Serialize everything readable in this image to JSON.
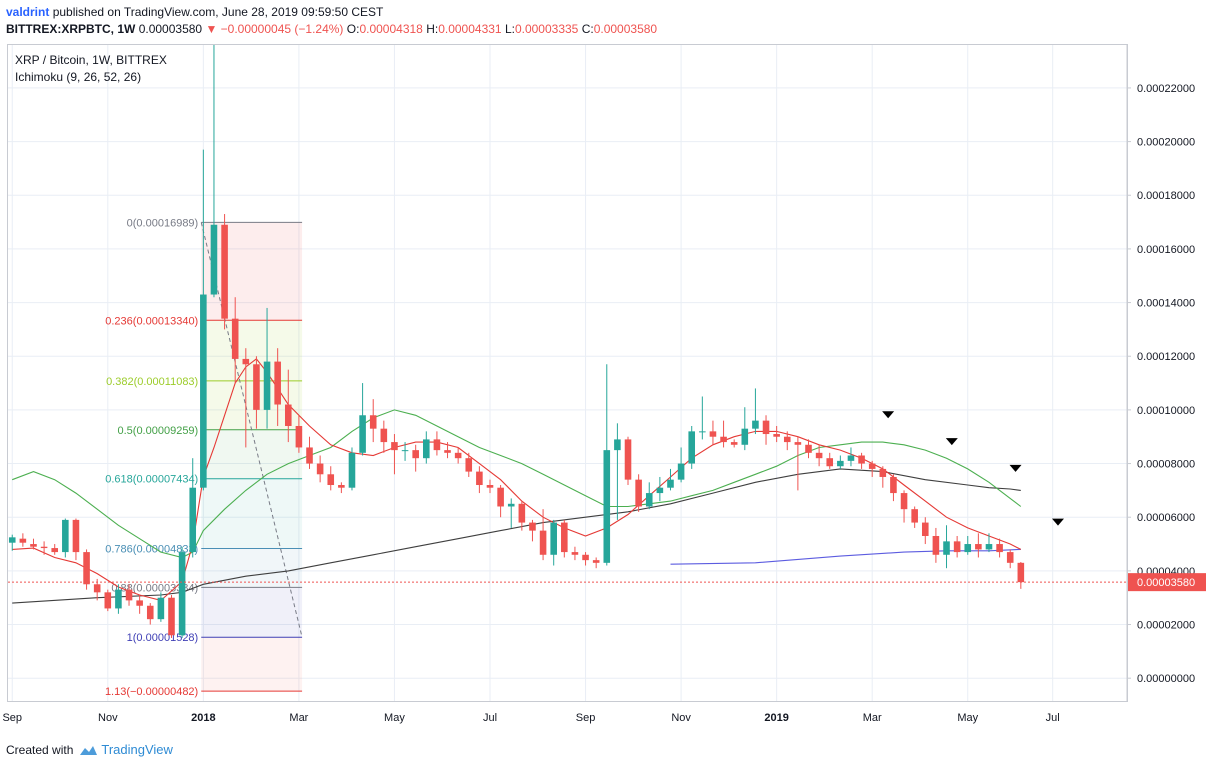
{
  "header": {
    "author": "valdrint",
    "published_text": "published on TradingView.com, June 28, 2019 09:59:50 CEST",
    "symbol": "BITTREX:XRPBTC, 1W",
    "last_price": "0.00003580",
    "change": "▼ −0.00000045 (−1.24%)",
    "ohlc_o_label": "O:",
    "ohlc_o": "0.00004318",
    "ohlc_h_label": "H:",
    "ohlc_h": "0.00004331",
    "ohlc_l_label": "L:",
    "ohlc_l": "0.00003335",
    "ohlc_c_label": "C:",
    "ohlc_c": "0.00003580"
  },
  "legend": {
    "title": "XRP / Bitcoin, 1W, BITTREX",
    "indicator": "Ichimoku (9, 26, 52, 26)"
  },
  "footer": {
    "created_with": "Created with",
    "brand": "TradingView"
  },
  "colors": {
    "up": "#26a69a",
    "down": "#ef5350",
    "grid": "#e9eef5",
    "conversion": "#e53935",
    "base": "#4caf50",
    "lagging": "#3f3f3f",
    "span": "#5c5ce0"
  },
  "chart_data": {
    "type": "candlestick",
    "title": "XRP / Bitcoin, 1W, BITTREX",
    "y_axis": {
      "ticks": [
        "0.00022000",
        "0.00020000",
        "0.00018000",
        "0.00016000",
        "0.00014000",
        "0.00012000",
        "0.00010000",
        "0.00008000",
        "0.00006000",
        "0.00004000",
        "0.00002000",
        "0.00000000"
      ],
      "tick_values": [
        0.00022,
        0.0002,
        0.00018,
        0.00016,
        0.00014,
        0.00012,
        0.0001,
        8e-05,
        6e-05,
        4e-05,
        2e-05,
        0.0
      ],
      "range": [
        -8.5e-06,
        0.000236
      ],
      "current_price_label": "0.00003580",
      "current_price": 3.58e-05
    },
    "x_axis": {
      "labels": [
        "Sep",
        "Nov",
        "2018",
        "Mar",
        "May",
        "Jul",
        "Sep",
        "Nov",
        "2019",
        "Mar",
        "May",
        "Jul"
      ],
      "label_weeks": [
        0,
        9,
        18,
        27,
        36,
        45,
        54,
        63,
        72,
        81,
        90,
        98
      ],
      "week_range": [
        -0.4,
        105
      ]
    },
    "candles": [
      [
        0,
        5.05,
        5.25,
        5.35,
        4.75
      ],
      [
        1,
        5.2,
        5.05,
        5.4,
        4.9
      ],
      [
        2,
        5.0,
        4.9,
        5.2,
        4.8
      ],
      [
        3,
        4.9,
        4.85,
        5.1,
        4.6
      ],
      [
        4,
        4.85,
        4.7,
        5.0,
        4.6
      ],
      [
        5,
        4.7,
        5.9,
        5.95,
        4.5
      ],
      [
        6,
        5.9,
        4.7,
        5.95,
        4.4
      ],
      [
        7,
        4.7,
        3.5,
        4.8,
        3.3
      ],
      [
        8,
        3.5,
        3.2,
        3.7,
        2.9
      ],
      [
        9,
        3.2,
        2.6,
        3.3,
        2.5
      ],
      [
        10,
        2.6,
        3.3,
        3.5,
        2.4
      ],
      [
        11,
        3.3,
        2.9,
        3.5,
        2.7
      ],
      [
        12,
        2.9,
        2.7,
        3.1,
        2.4
      ],
      [
        13,
        2.7,
        2.2,
        2.8,
        2.0
      ],
      [
        14,
        2.2,
        3.0,
        3.2,
        2.1
      ],
      [
        15,
        3.0,
        1.6,
        3.1,
        1.5
      ],
      [
        16,
        1.6,
        4.7,
        4.9,
        1.5
      ],
      [
        17,
        4.7,
        7.1,
        8.2,
        4.5
      ],
      [
        18,
        7.1,
        14.3,
        19.7,
        7.0
      ],
      [
        19,
        14.3,
        16.9,
        23.6,
        14.2
      ],
      [
        20,
        16.9,
        13.4,
        17.3,
        13.0
      ],
      [
        21,
        13.4,
        11.9,
        14.2,
        11.0
      ],
      [
        22,
        11.9,
        11.7,
        12.3,
        8.6
      ],
      [
        23,
        11.7,
        10.0,
        12.0,
        9.3
      ],
      [
        24,
        10.0,
        11.8,
        13.8,
        9.3
      ],
      [
        25,
        11.8,
        10.2,
        12.3,
        9.4
      ],
      [
        26,
        10.2,
        9.4,
        11.5,
        8.8
      ],
      [
        27,
        9.4,
        8.6,
        9.8,
        8.4
      ],
      [
        28,
        8.6,
        8.0,
        9.0,
        7.8
      ],
      [
        29,
        8.0,
        7.6,
        8.3,
        7.3
      ],
      [
        30,
        7.6,
        7.2,
        7.9,
        7.0
      ],
      [
        31,
        7.2,
        7.1,
        7.3,
        6.9
      ],
      [
        32,
        7.1,
        8.4,
        8.6,
        7.0
      ],
      [
        33,
        8.4,
        9.8,
        11.0,
        8.3
      ],
      [
        34,
        9.8,
        9.3,
        10.4,
        8.8
      ],
      [
        35,
        9.3,
        8.8,
        9.6,
        8.4
      ],
      [
        36,
        8.8,
        8.5,
        9.1,
        7.6
      ],
      [
        37,
        8.5,
        8.5,
        8.8,
        8.1
      ],
      [
        38,
        8.5,
        8.2,
        8.7,
        7.7
      ],
      [
        39,
        8.2,
        8.9,
        9.2,
        8.0
      ],
      [
        40,
        8.9,
        8.5,
        9.2,
        8.3
      ],
      [
        41,
        8.5,
        8.4,
        8.8,
        8.2
      ],
      [
        42,
        8.4,
        8.2,
        8.6,
        8.0
      ],
      [
        43,
        8.2,
        7.7,
        8.4,
        7.5
      ],
      [
        44,
        7.7,
        7.2,
        7.9,
        6.9
      ],
      [
        45,
        7.2,
        7.1,
        7.4,
        6.9
      ],
      [
        46,
        7.1,
        6.4,
        7.2,
        6.0
      ],
      [
        47,
        6.4,
        6.5,
        6.7,
        5.6
      ],
      [
        48,
        6.5,
        5.8,
        6.6,
        5.5
      ],
      [
        49,
        5.8,
        5.5,
        5.9,
        5.1
      ],
      [
        50,
        5.5,
        4.6,
        6.3,
        4.4
      ],
      [
        51,
        4.6,
        5.8,
        5.9,
        4.2
      ],
      [
        52,
        5.8,
        4.7,
        5.9,
        4.5
      ],
      [
        53,
        4.7,
        4.6,
        4.9,
        4.4
      ],
      [
        54,
        4.6,
        4.4,
        4.7,
        4.2
      ],
      [
        55,
        4.4,
        4.3,
        4.5,
        4.1
      ],
      [
        56,
        4.3,
        8.5,
        11.7,
        4.2
      ],
      [
        57,
        8.5,
        8.9,
        9.5,
        5.9
      ],
      [
        58,
        8.9,
        7.4,
        9.0,
        7.2
      ],
      [
        59,
        7.4,
        6.4,
        7.6,
        6.2
      ],
      [
        60,
        6.4,
        6.9,
        7.3,
        6.3
      ],
      [
        61,
        6.9,
        7.1,
        7.5,
        6.6
      ],
      [
        62,
        7.1,
        7.4,
        7.8,
        7.0
      ],
      [
        63,
        7.4,
        8.0,
        8.6,
        7.3
      ],
      [
        64,
        8.0,
        9.2,
        9.4,
        7.8
      ],
      [
        65,
        9.2,
        9.2,
        10.5,
        8.9
      ],
      [
        66,
        9.2,
        9.0,
        9.6,
        8.7
      ],
      [
        67,
        9.0,
        8.8,
        9.6,
        8.6
      ],
      [
        68,
        8.8,
        8.7,
        8.9,
        8.6
      ],
      [
        69,
        8.7,
        9.3,
        10.1,
        8.5
      ],
      [
        70,
        9.3,
        9.6,
        10.8,
        9.1
      ],
      [
        71,
        9.6,
        9.1,
        9.8,
        8.7
      ],
      [
        72,
        9.1,
        9.0,
        9.4,
        8.8
      ],
      [
        73,
        9.0,
        8.8,
        9.2,
        8.5
      ],
      [
        74,
        8.8,
        8.7,
        9.0,
        7.0
      ],
      [
        75,
        8.7,
        8.4,
        8.9,
        8.2
      ],
      [
        76,
        8.4,
        8.2,
        8.7,
        7.9
      ],
      [
        77,
        8.2,
        7.9,
        8.4,
        7.8
      ],
      [
        78,
        7.9,
        8.1,
        8.3,
        7.8
      ],
      [
        79,
        8.1,
        8.3,
        8.6,
        7.9
      ],
      [
        80,
        8.3,
        8.0,
        8.4,
        7.8
      ],
      [
        81,
        8.0,
        7.8,
        8.1,
        7.5
      ],
      [
        82,
        7.8,
        7.5,
        7.9,
        7.1
      ],
      [
        83,
        7.5,
        6.9,
        7.6,
        6.6
      ],
      [
        84,
        6.9,
        6.3,
        7.0,
        5.8
      ],
      [
        85,
        6.3,
        5.8,
        6.4,
        5.6
      ],
      [
        86,
        5.8,
        5.3,
        6.0,
        5.0
      ],
      [
        87,
        5.3,
        4.6,
        5.6,
        4.3
      ],
      [
        88,
        4.6,
        5.1,
        5.7,
        4.1
      ],
      [
        89,
        5.1,
        4.7,
        5.3,
        4.5
      ],
      [
        90,
        4.7,
        5.0,
        5.3,
        4.6
      ],
      [
        91,
        5.0,
        4.8,
        5.4,
        4.5
      ],
      [
        92,
        4.8,
        5.0,
        5.4,
        4.7
      ],
      [
        93,
        5.0,
        4.7,
        5.2,
        4.5
      ],
      [
        94,
        4.7,
        4.3,
        4.8,
        4.1
      ],
      [
        95,
        4.3,
        3.58,
        4.33,
        3.33
      ]
    ],
    "conversion_line": [
      [
        0,
        4.8
      ],
      [
        2,
        4.85
      ],
      [
        4,
        4.5
      ],
      [
        6,
        4.3
      ],
      [
        8,
        3.9
      ],
      [
        10,
        3.4
      ],
      [
        12,
        3.1
      ],
      [
        14,
        2.9
      ],
      [
        16,
        3.6
      ],
      [
        17,
        5.0
      ],
      [
        18,
        7.5
      ],
      [
        19,
        8.6
      ],
      [
        20,
        9.8
      ],
      [
        21,
        11.0
      ],
      [
        22,
        11.6
      ],
      [
        23,
        11.9
      ],
      [
        24,
        11.4
      ],
      [
        25,
        10.8
      ],
      [
        26,
        10.2
      ],
      [
        28,
        9.4
      ],
      [
        30,
        8.7
      ],
      [
        32,
        8.4
      ],
      [
        34,
        8.3
      ],
      [
        36,
        8.6
      ],
      [
        38,
        8.8
      ],
      [
        40,
        8.8
      ],
      [
        42,
        8.6
      ],
      [
        44,
        8.0
      ],
      [
        46,
        7.4
      ],
      [
        48,
        6.6
      ],
      [
        50,
        6.0
      ],
      [
        52,
        5.6
      ],
      [
        54,
        5.3
      ],
      [
        56,
        5.6
      ],
      [
        58,
        6.1
      ],
      [
        60,
        6.8
      ],
      [
        62,
        7.5
      ],
      [
        64,
        8.2
      ],
      [
        66,
        8.7
      ],
      [
        68,
        9.0
      ],
      [
        70,
        9.2
      ],
      [
        72,
        9.2
      ],
      [
        74,
        9.0
      ],
      [
        76,
        8.7
      ],
      [
        78,
        8.5
      ],
      [
        80,
        8.2
      ],
      [
        82,
        7.8
      ],
      [
        84,
        7.2
      ],
      [
        86,
        6.6
      ],
      [
        88,
        6.0
      ],
      [
        90,
        5.6
      ],
      [
        92,
        5.3
      ],
      [
        94,
        5.0
      ],
      [
        95,
        4.8
      ]
    ],
    "base_line": [
      [
        0,
        7.4
      ],
      [
        2,
        7.7
      ],
      [
        4,
        7.4
      ],
      [
        6,
        6.9
      ],
      [
        8,
        6.3
      ],
      [
        10,
        5.7
      ],
      [
        12,
        5.2
      ],
      [
        14,
        4.7
      ],
      [
        16,
        4.5
      ],
      [
        17,
        4.7
      ],
      [
        18,
        5.5
      ],
      [
        20,
        6.3
      ],
      [
        22,
        7.0
      ],
      [
        24,
        7.6
      ],
      [
        26,
        8.0
      ],
      [
        28,
        8.3
      ],
      [
        30,
        8.6
      ],
      [
        32,
        9.2
      ],
      [
        34,
        9.7
      ],
      [
        36,
        10.0
      ],
      [
        38,
        9.8
      ],
      [
        40,
        9.4
      ],
      [
        42,
        9.0
      ],
      [
        44,
        8.6
      ],
      [
        46,
        8.3
      ],
      [
        48,
        8.0
      ],
      [
        50,
        7.6
      ],
      [
        52,
        7.2
      ],
      [
        54,
        6.8
      ],
      [
        56,
        6.4
      ],
      [
        58,
        6.4
      ],
      [
        60,
        6.5
      ],
      [
        62,
        6.6
      ],
      [
        64,
        6.8
      ],
      [
        66,
        7.0
      ],
      [
        68,
        7.3
      ],
      [
        70,
        7.6
      ],
      [
        72,
        7.9
      ],
      [
        74,
        8.3
      ],
      [
        76,
        8.6
      ],
      [
        78,
        8.7
      ],
      [
        80,
        8.8
      ],
      [
        82,
        8.8
      ],
      [
        84,
        8.7
      ],
      [
        86,
        8.5
      ],
      [
        88,
        8.2
      ],
      [
        90,
        7.8
      ],
      [
        92,
        7.3
      ],
      [
        94,
        6.7
      ],
      [
        95,
        6.4
      ]
    ],
    "lagging_line": [
      [
        0,
        2.8
      ],
      [
        8,
        3.0
      ],
      [
        14,
        3.1
      ],
      [
        16,
        3.2
      ],
      [
        18,
        3.5
      ],
      [
        22,
        3.8
      ],
      [
        26,
        4.0
      ],
      [
        30,
        4.3
      ],
      [
        34,
        4.6
      ],
      [
        38,
        4.9
      ],
      [
        42,
        5.2
      ],
      [
        46,
        5.5
      ],
      [
        50,
        5.8
      ],
      [
        54,
        6.0
      ],
      [
        58,
        6.2
      ],
      [
        62,
        6.5
      ],
      [
        66,
        6.9
      ],
      [
        70,
        7.3
      ],
      [
        74,
        7.6
      ],
      [
        78,
        7.8
      ],
      [
        82,
        7.7
      ],
      [
        86,
        7.4
      ],
      [
        90,
        7.2
      ],
      [
        92,
        7.1
      ],
      [
        94,
        7.05
      ],
      [
        95,
        7.0
      ]
    ],
    "span_line": [
      [
        62,
        4.25
      ],
      [
        70,
        4.3
      ],
      [
        78,
        4.55
      ],
      [
        84,
        4.7
      ],
      [
        88,
        4.75
      ],
      [
        92,
        4.75
      ],
      [
        95,
        4.8
      ]
    ],
    "value_scale": 1e-05,
    "fibonacci": {
      "start_week": 17.8,
      "end_week": 27.3,
      "levels": [
        {
          "label": "0(0.00016989)",
          "value": 0.00016989,
          "color": "#787b86"
        },
        {
          "label": "0.236(0.00013340)",
          "value": 0.0001334,
          "color": "#e53935"
        },
        {
          "label": "0.382(0.00011083)",
          "value": 0.00011083,
          "color": "#9ccc2a"
        },
        {
          "label": "0.5(0.00009259)",
          "value": 9.259e-05,
          "color": "#43a047"
        },
        {
          "label": "0.618(0.00007434)",
          "value": 7.434e-05,
          "color": "#26a69a"
        },
        {
          "label": "0.786(0.00004833)",
          "value": 4.833e-05,
          "color": "#4a8fb5"
        },
        {
          "label": "0.88(0.00003384)",
          "value": 3.384e-05,
          "color": "#787b86"
        },
        {
          "label": "1(0.00001528)",
          "value": 1.528e-05,
          "color": "#3f3fb5"
        },
        {
          "label": "1.13(−0.00000482)",
          "value": -4.82e-06,
          "color": "#e53935"
        }
      ]
    },
    "markers": [
      [
        82.5,
        9.8
      ],
      [
        88.5,
        8.8
      ],
      [
        94.5,
        7.8
      ],
      [
        98.5,
        5.8
      ]
    ],
    "grid": true
  }
}
